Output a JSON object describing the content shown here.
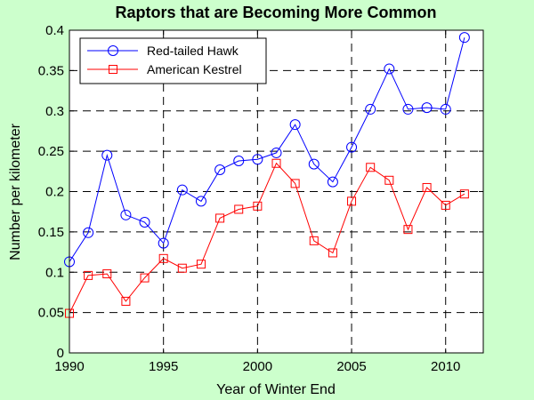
{
  "chart_data": {
    "type": "line",
    "title": "Raptors that are Becoming More Common",
    "xlabel": "Year of Winter End",
    "ylabel": "Number per kilometer",
    "xlim": [
      1990,
      2012
    ],
    "ylim": [
      0,
      0.4
    ],
    "xticks": [
      1990,
      1995,
      2000,
      2005,
      2010
    ],
    "xtick_labels": [
      "1990",
      "1995",
      "2000",
      "2005",
      "2010"
    ],
    "yticks": [
      0,
      0.05,
      0.1,
      0.15,
      0.2,
      0.25,
      0.3,
      0.35,
      0.4
    ],
    "ytick_labels": [
      "0",
      "0.05",
      "0.1",
      "0.15",
      "0.2",
      "0.25",
      "0.3",
      "0.35",
      "0.4"
    ],
    "grid": "dashed",
    "legend_position": "top-left",
    "x": [
      1990,
      1991,
      1992,
      1993,
      1994,
      1995,
      1996,
      1997,
      1998,
      1999,
      2000,
      2001,
      2002,
      2003,
      2004,
      2005,
      2006,
      2007,
      2008,
      2009,
      2010,
      2011
    ],
    "series": [
      {
        "name": "Red-tailed Hawk",
        "color": "#0000ff",
        "marker": "circle",
        "values": [
          0.113,
          0.149,
          0.245,
          0.171,
          0.162,
          0.136,
          0.202,
          0.188,
          0.227,
          0.238,
          0.24,
          0.248,
          0.283,
          0.234,
          0.212,
          0.255,
          0.302,
          0.352,
          0.302,
          0.304,
          0.302,
          0.391
        ]
      },
      {
        "name": "American Kestrel",
        "color": "#ff0000",
        "marker": "square",
        "values": [
          0.049,
          0.096,
          0.098,
          0.064,
          0.093,
          0.117,
          0.105,
          0.11,
          0.167,
          0.178,
          0.182,
          0.235,
          0.21,
          0.139,
          0.124,
          0.188,
          0.23,
          0.214,
          0.153,
          0.205,
          0.183,
          0.197
        ]
      }
    ]
  }
}
